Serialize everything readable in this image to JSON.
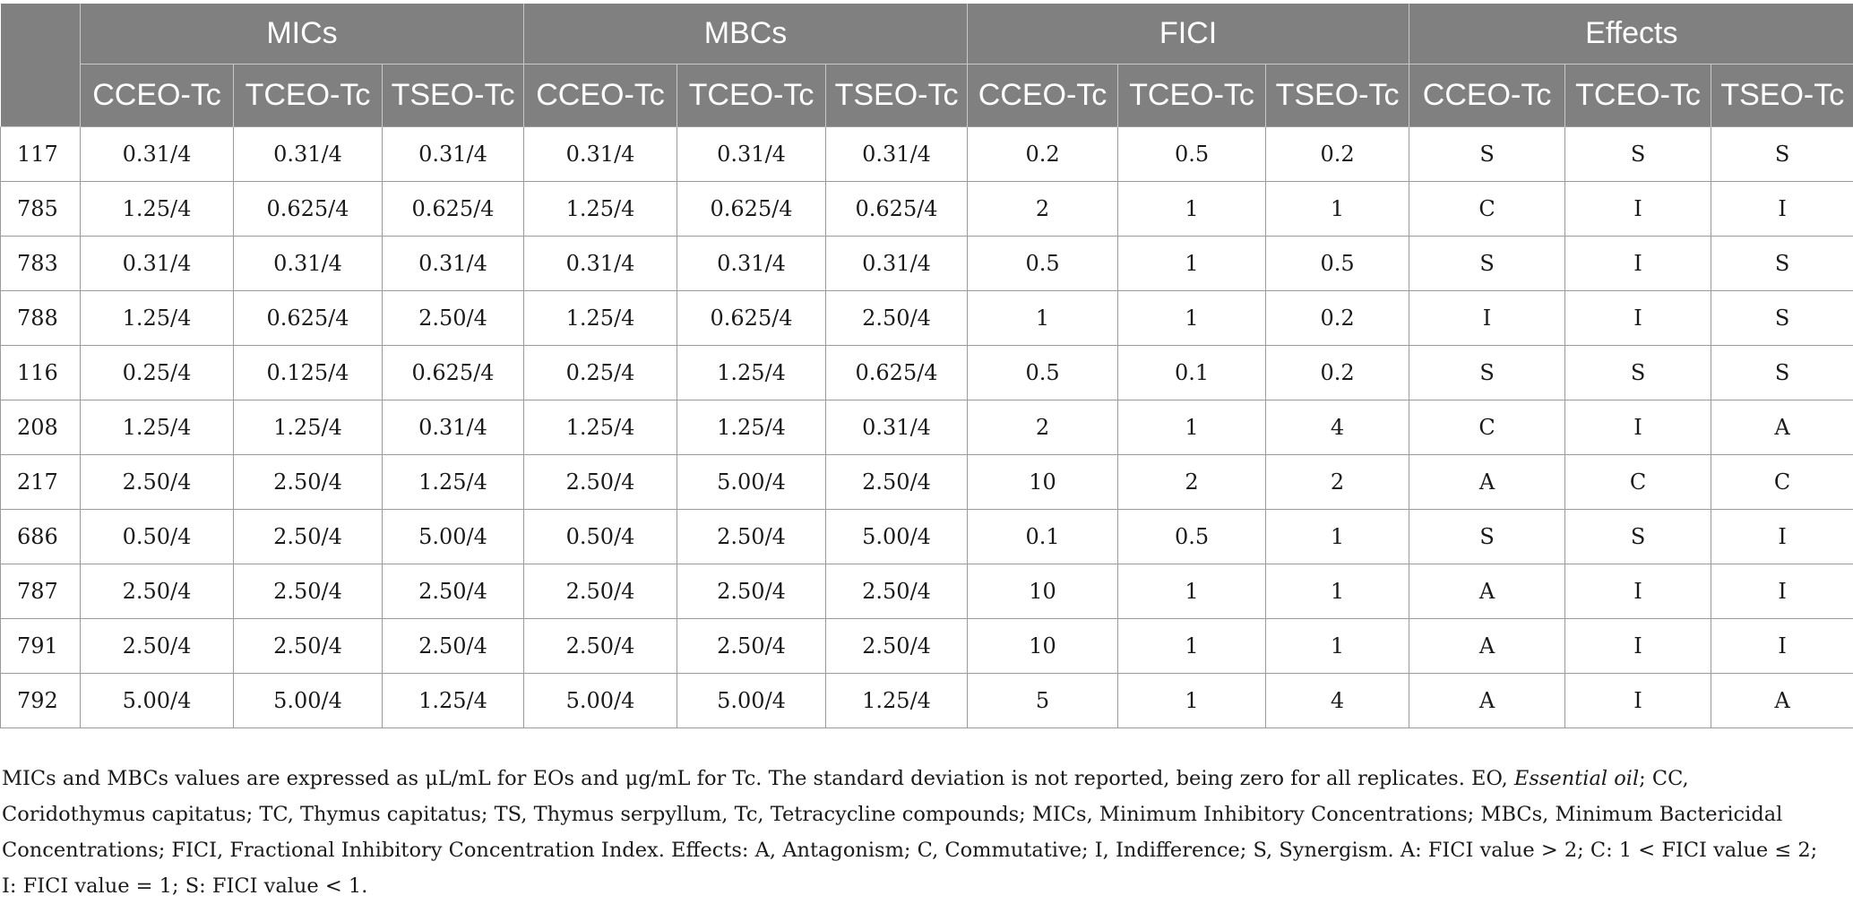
{
  "table": {
    "groups": [
      "MICs",
      "MBCs",
      "FICI",
      "Effects"
    ],
    "subheaders": [
      "CCEO-Tc",
      "TCEO-Tc",
      "TSEO-Tc",
      "CCEO-Tc",
      "TCEO-Tc",
      "TSEO-Tc",
      "CCEO-Tc",
      "TCEO-Tc",
      "TSEO-Tc",
      "CCEO-Tc",
      "TCEO-Tc",
      "TSEO-Tc"
    ],
    "rows": [
      [
        "117",
        "0.31/4",
        "0.31/4",
        "0.31/4",
        "0.31/4",
        "0.31/4",
        "0.31/4",
        "0.2",
        "0.5",
        "0.2",
        "S",
        "S",
        "S"
      ],
      [
        "785",
        "1.25/4",
        "0.625/4",
        "0.625/4",
        "1.25/4",
        "0.625/4",
        "0.625/4",
        "2",
        "1",
        "1",
        "C",
        "I",
        "I"
      ],
      [
        "783",
        "0.31/4",
        "0.31/4",
        "0.31/4",
        "0.31/4",
        "0.31/4",
        "0.31/4",
        "0.5",
        "1",
        "0.5",
        "S",
        "I",
        "S"
      ],
      [
        "788",
        "1.25/4",
        "0.625/4",
        "2.50/4",
        "1.25/4",
        "0.625/4",
        "2.50/4",
        "1",
        "1",
        "0.2",
        "I",
        "I",
        "S"
      ],
      [
        "116",
        "0.25/4",
        "0.125/4",
        "0.625/4",
        "0.25/4",
        "1.25/4",
        "0.625/4",
        "0.5",
        "0.1",
        "0.2",
        "S",
        "S",
        "S"
      ],
      [
        "208",
        "1.25/4",
        "1.25/4",
        "0.31/4",
        "1.25/4",
        "1.25/4",
        "0.31/4",
        "2",
        "1",
        "4",
        "C",
        "I",
        "A"
      ],
      [
        "217",
        "2.50/4",
        "2.50/4",
        "1.25/4",
        "2.50/4",
        "5.00/4",
        "2.50/4",
        "10",
        "2",
        "2",
        "A",
        "C",
        "C"
      ],
      [
        "686",
        "0.50/4",
        "2.50/4",
        "5.00/4",
        "0.50/4",
        "2.50/4",
        "5.00/4",
        "0.1",
        "0.5",
        "1",
        "S",
        "S",
        "I"
      ],
      [
        "787",
        "2.50/4",
        "2.50/4",
        "2.50/4",
        "2.50/4",
        "2.50/4",
        "2.50/4",
        "10",
        "1",
        "1",
        "A",
        "I",
        "I"
      ],
      [
        "791",
        "2.50/4",
        "2.50/4",
        "2.50/4",
        "2.50/4",
        "2.50/4",
        "2.50/4",
        "10",
        "1",
        "1",
        "A",
        "I",
        "I"
      ],
      [
        "792",
        "5.00/4",
        "5.00/4",
        "1.25/4",
        "5.00/4",
        "5.00/4",
        "1.25/4",
        "5",
        "1",
        "4",
        "A",
        "I",
        "A"
      ]
    ]
  },
  "footnote": {
    "before_italic": "MICs and MBCs values are expressed as μL/mL for EOs and μg/mL for Tc. The standard deviation is not reported, being zero for all replicates. EO, ",
    "italic": "Essential oil",
    "after_italic": "; CC, Coridothymus capitatus; TC, Thymus capitatus; TS, Thymus serpyllum, Tc, Tetracycline compounds; MICs, Minimum Inhibitory Concentrations; MBCs, Minimum Bactericidal Concentrations; FICI, Fractional Inhibitory Concentration Index. Effects: A, Antagonism; C, Commutative; I, Indifference; S, Synergism. A: FICI value > 2; C: 1 < FICI value ≤ 2; I: FICI value = 1; S: FICI value < 1."
  }
}
